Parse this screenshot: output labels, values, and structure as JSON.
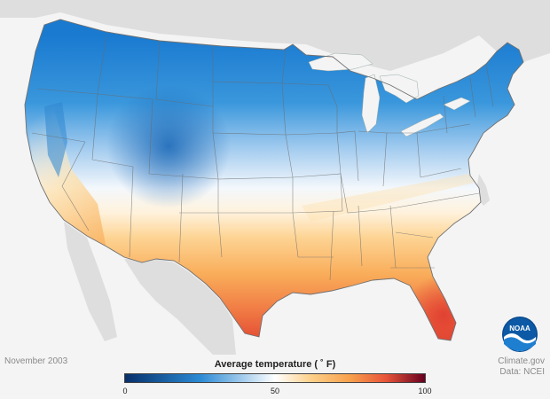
{
  "map": {
    "period": "November 2003",
    "credit_line1": "Climate.gov",
    "credit_line2": "Data: NCEI",
    "logo_text": "NOAA"
  },
  "legend": {
    "title": "Average temperature ( ˚ F)",
    "ticks": [
      "0",
      "50",
      "100"
    ],
    "stops": [
      {
        "value": 0,
        "color": "#08306b"
      },
      {
        "value": 25,
        "color": "#2b8ad4"
      },
      {
        "value": 50,
        "color": "#ffffff"
      },
      {
        "value": 62,
        "color": "#fdd08a"
      },
      {
        "value": 75,
        "color": "#f7a04d"
      },
      {
        "value": 87,
        "color": "#e8553a"
      },
      {
        "value": 100,
        "color": "#67001f"
      }
    ]
  },
  "colors": {
    "background": "#f4f4f4",
    "land_outside": "#dedede",
    "water": "#f4f4f4",
    "border": "#666666"
  }
}
